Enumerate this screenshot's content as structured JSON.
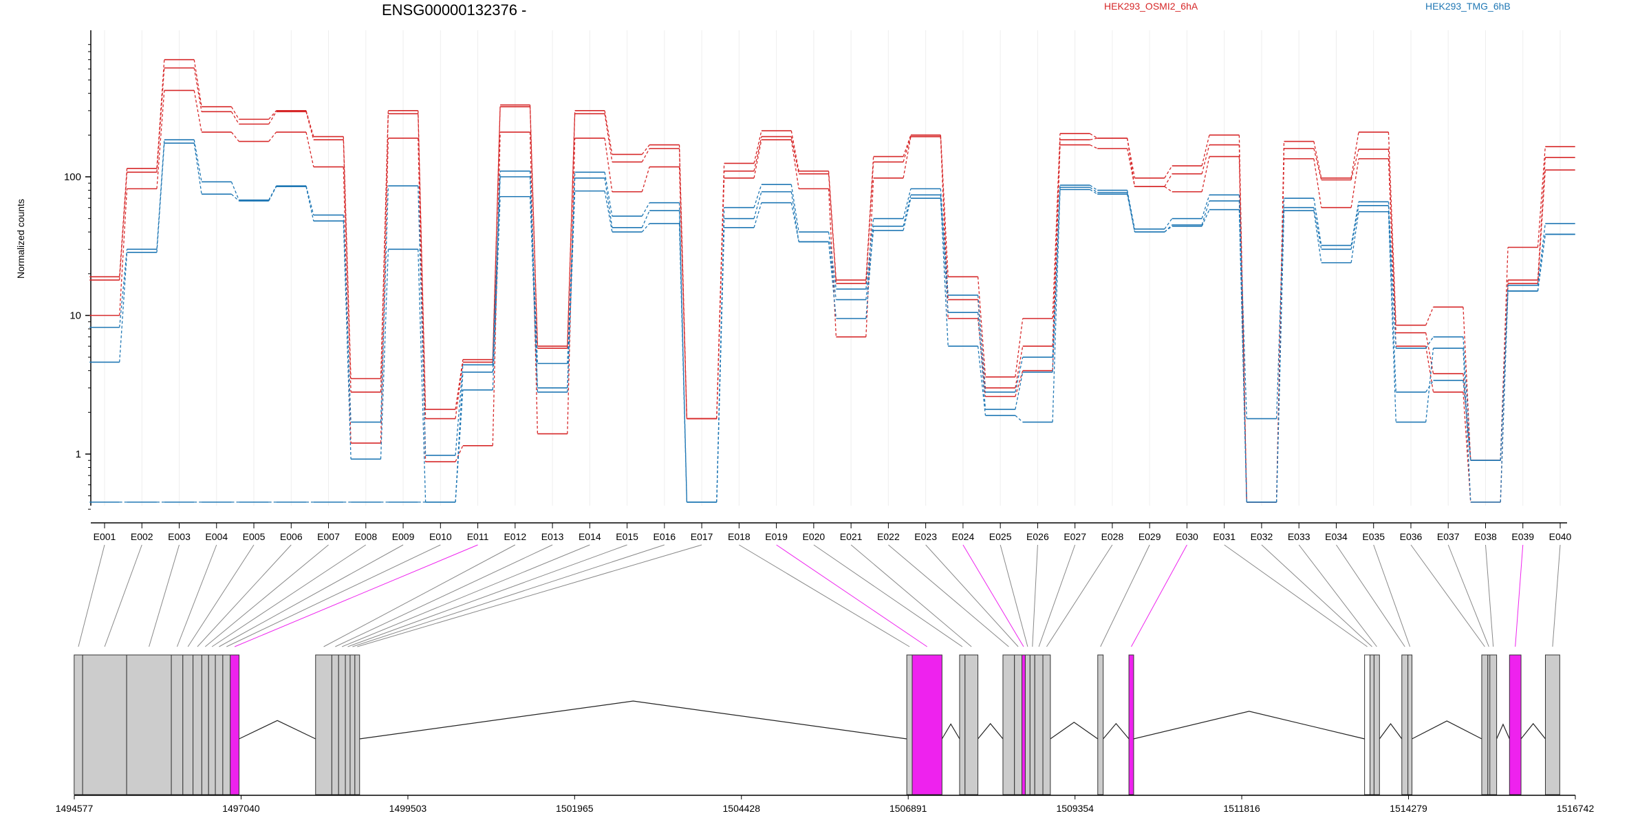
{
  "chart_data": {
    "type": "line",
    "title": "ENSG00000132376 -",
    "ylabel": "Normalized counts",
    "xlabel": "",
    "y_scale": "log",
    "ylim": [
      0.4,
      900
    ],
    "y_ticks": [
      "1",
      "10",
      "100"
    ],
    "grid": "vertical",
    "legend_position": "top",
    "categories": [
      "E001",
      "E002",
      "E003",
      "E004",
      "E005",
      "E006",
      "E007",
      "E008",
      "E009",
      "E010",
      "E011",
      "E012",
      "E013",
      "E014",
      "E015",
      "E016",
      "E017",
      "E018",
      "E019",
      "E020",
      "E021",
      "E022",
      "E023",
      "E024",
      "E025",
      "E026",
      "E027",
      "E028",
      "E029",
      "E030",
      "E031",
      "E032",
      "E033",
      "E034",
      "E035",
      "E036",
      "E037",
      "E038",
      "E039",
      "E040"
    ],
    "series": [
      {
        "group": "HEK293_OSMI2_6hA",
        "color": "#d62728",
        "values": [
          19,
          115,
          700,
          320,
          260,
          300,
          195,
          3.5,
          300,
          2.1,
          4.8,
          330,
          6,
          300,
          145,
          170,
          1.8,
          125,
          215,
          110,
          18,
          140,
          200,
          19,
          3.6,
          9.5,
          205,
          190,
          98,
          120,
          200,
          0.45,
          180,
          98,
          210,
          8.5,
          11.5,
          0.9,
          31,
          165
        ]
      },
      {
        "group": "HEK293_OSMI2_6hA",
        "color": "#d62728",
        "values": [
          18,
          108,
          610,
          295,
          240,
          295,
          185,
          2.8,
          285,
          1.8,
          4.6,
          320,
          5.8,
          285,
          128,
          160,
          1.8,
          110,
          195,
          105,
          17,
          128,
          195,
          13,
          3,
          6,
          185,
          190,
          85,
          105,
          170,
          0.45,
          160,
          95,
          158,
          7.5,
          3.8,
          0.9,
          18,
          138
        ]
      },
      {
        "group": "HEK293_OSMI2_6hA",
        "color": "#d62728",
        "values": [
          10,
          82,
          420,
          210,
          180,
          210,
          118,
          1.2,
          190,
          0.88,
          1.15,
          210,
          1.4,
          190,
          78,
          118,
          1.8,
          98,
          185,
          82,
          7,
          98,
          195,
          9.5,
          2.6,
          4,
          170,
          160,
          85,
          78,
          140,
          0.45,
          135,
          60,
          135,
          6,
          2.8,
          0.45,
          17,
          112
        ]
      },
      {
        "group": "HEK293_TMG_6hB",
        "color": "#1f77b4",
        "values": [
          8.2,
          30,
          185,
          92,
          68,
          86,
          53,
          1.7,
          86,
          0.98,
          4.4,
          110,
          3.0,
          108,
          52,
          65,
          0.45,
          60,
          88,
          40,
          15.5,
          50,
          82,
          14,
          2.8,
          5,
          87,
          80,
          42,
          50,
          74,
          1.8,
          70,
          32,
          66,
          5.8,
          7.0,
          0.9,
          16.5,
          46
        ]
      },
      {
        "group": "HEK293_TMG_6hB",
        "color": "#1f77b4",
        "values": [
          4.6,
          28.5,
          175,
          75,
          67,
          85,
          48,
          0.92,
          30,
          0.45,
          3.9,
          100,
          4.5,
          98,
          43,
          57,
          0.45,
          50,
          78,
          34,
          9.5,
          44,
          74,
          10.5,
          2.1,
          3.9,
          84,
          77,
          40,
          45,
          67,
          0.45,
          60,
          30,
          62,
          2.8,
          3.4,
          0.9,
          15,
          38.5
        ]
      },
      {
        "group": "HEK293_TMG_6hB",
        "color": "#1f77b4",
        "values": [
          0.45,
          0.45,
          0.45,
          0.45,
          0.45,
          0.45,
          0.45,
          0.45,
          0.45,
          0.45,
          2.9,
          72,
          2.8,
          79,
          40,
          46,
          0.45,
          43,
          65,
          34,
          13,
          41,
          70,
          6,
          1.9,
          1.7,
          81,
          75,
          40,
          44,
          58,
          0.45,
          57,
          24,
          56,
          1.7,
          5.8,
          0.45,
          15,
          38.5
        ]
      }
    ],
    "gene_model": {
      "x_ticks": [
        "1494577",
        "1497040",
        "1499503",
        "1501965",
        "1504428",
        "1506891",
        "1509354",
        "1511816",
        "1514279",
        "1516742"
      ],
      "colors": {
        "exon": "#cccccc",
        "highlight": "#ee22ee",
        "outline": "#333333",
        "connector": "#888888"
      }
    }
  }
}
